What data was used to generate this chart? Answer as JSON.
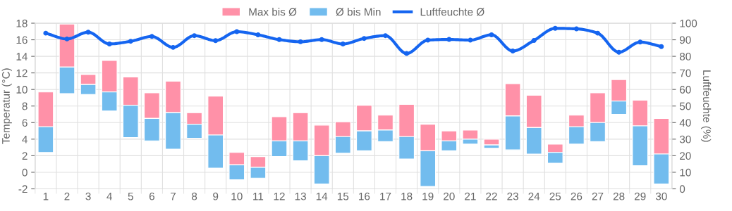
{
  "chart_data": {
    "type": "bar",
    "xlabel": null,
    "ylabel": "Temperatur (°C)",
    "y2label": "Luftfeuchte (%)",
    "categories": [
      "1",
      "2",
      "3",
      "4",
      "5",
      "6",
      "7",
      "8",
      "9",
      "10",
      "11",
      "12",
      "13",
      "14",
      "15",
      "16",
      "17",
      "18",
      "19",
      "20",
      "21",
      "22",
      "23",
      "24",
      "25",
      "26",
      "27",
      "28",
      "29",
      "30"
    ],
    "series": [
      {
        "name": "Max bis Ø",
        "color": "#ff91a8",
        "base": [
          5.5,
          12.7,
          10.6,
          9.7,
          8.1,
          6.5,
          7.2,
          5.8,
          4.5,
          0.9,
          0.6,
          3.8,
          3.8,
          2.0,
          4.3,
          5.0,
          5.1,
          4.3,
          2.6,
          3.8,
          4.0,
          3.3,
          6.8,
          5.4,
          2.4,
          5.5,
          6.0,
          8.6,
          5.6,
          2.2
        ],
        "values": [
          4.2,
          5.2,
          1.2,
          3.8,
          3.4,
          3.1,
          3.8,
          1.4,
          4.7,
          1.5,
          1.3,
          2.9,
          3.4,
          3.7,
          1.8,
          3.1,
          1.8,
          3.9,
          3.2,
          1.2,
          1.1,
          0.7,
          3.9,
          3.9,
          1.0,
          1.4,
          3.6,
          2.6,
          3.1,
          4.3
        ]
      },
      {
        "name": "Ø bis Min",
        "color": "#72bcee",
        "base": [
          2.4,
          9.5,
          9.4,
          7.4,
          4.2,
          3.8,
          2.8,
          4.1,
          0.5,
          -0.9,
          -0.7,
          1.9,
          1.4,
          -1.4,
          2.3,
          2.6,
          3.7,
          1.6,
          -1.7,
          2.6,
          3.4,
          2.9,
          2.7,
          2.2,
          1.1,
          3.4,
          3.7,
          7.0,
          0.8,
          -1.4
        ],
        "values": [
          3.1,
          3.2,
          1.2,
          2.3,
          3.9,
          2.7,
          4.4,
          1.7,
          4.0,
          1.8,
          1.3,
          1.9,
          2.4,
          3.4,
          2.0,
          2.4,
          1.4,
          2.7,
          4.3,
          1.2,
          0.6,
          0.4,
          4.1,
          3.2,
          1.3,
          2.1,
          2.3,
          1.6,
          4.8,
          3.6
        ]
      },
      {
        "name": "Luftfeuchte Ø",
        "type": "line",
        "axis": "y2",
        "color": "#1565f0",
        "marker": "circle",
        "values": [
          94.0,
          90.5,
          94.6,
          87.5,
          89.1,
          92.0,
          85.4,
          92.5,
          89.5,
          94.9,
          93.0,
          90.1,
          88.8,
          90.1,
          87.5,
          90.8,
          92.5,
          81.7,
          89.8,
          90.2,
          89.8,
          93.0,
          83.2,
          89.6,
          96.9,
          96.6,
          94.0,
          82.5,
          88.6,
          85.9
        ]
      }
    ],
    "ylim": [
      -2,
      18
    ],
    "yticks": [
      -2,
      0,
      2,
      4,
      6,
      8,
      10,
      12,
      14,
      16,
      18
    ],
    "y2lim": [
      0,
      100
    ],
    "y2ticks": [
      0,
      10,
      20,
      30,
      40,
      50,
      60,
      70,
      80,
      90,
      100
    ],
    "grid": true,
    "legend": "top"
  }
}
